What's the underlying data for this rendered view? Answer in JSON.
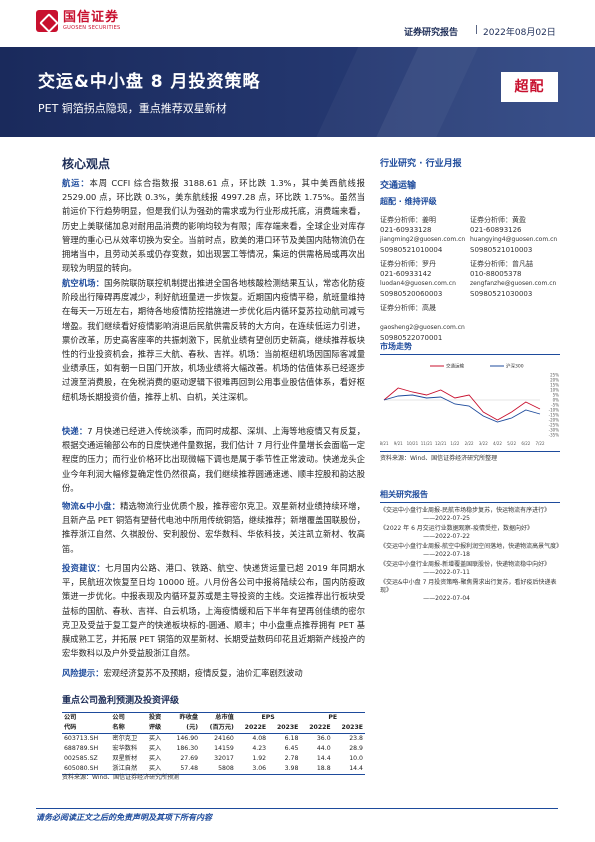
{
  "header": {
    "logo_cn": "国信证券",
    "logo_en": "GUOSEN SECURITIES",
    "report_type": "证券研究报告",
    "separator": "|",
    "date": "2022年08月02日"
  },
  "banner": {
    "title": "交运&中小盘 8 月投资策略",
    "subtitle": "PET 铜箔拐点隐现，重点推荐双星新材",
    "rating": "超配"
  },
  "core": {
    "title": "核心观点",
    "p1_kw": "航运：",
    "p1": "本周 CCFI 综合指数报 3188.61 点，环比跌 1.3%，其中美西航线报 2529.00 点，环比跌 0.3%，美东航线报 4997.28 点，环比跌 1.75%。虽然当前运价下行趋势明显，但是我们认为强劲的需求或为行业形成托底，消费端来看，历史上美联储加息对耐用品消费的影响均较为有限；库存端来看，全球企业对库存管理的重心已从效率切换为安全。当前时点，欧美的港口环节及美国内陆物流仍在拥堵当中，且劳动关系或仍存变数，如出现罢工等情况，集运的供需格局或再次出现较为明显的转向。",
    "p2_kw": "航空机场：",
    "p2": "国务院联防联控机制提出推进全国各地核酸检测结果互认，常态化防疫阶段出行障碍再度减少，利好航班量进一步恢复。近期国内疫情平稳，航班量维持在每天一万班左右，期待各地疫情防控措施进一步优化后内循环复苏拉动航司减亏增盈。我们继续看好疫情影响消退后民航供需反转的大方向，在连续低运力引进，票价改革，历史高客座率的共振刺激下，民航业绩有望创历史新高，继续推荐板块性的行业投资机会，推荐三大航、春秋、吉祥。机场：当前枢纽机场因国际客减量业绩承压，如有朝一日国门开放，机场业绩将大幅改善。机场的估值体系已经逐步过渡至消费股，在免税消费的驱动逻辑下很难再回到公用事业股估值体系，看好枢纽机场长期投资价值，推荐上机、白机，关注深机。",
    "p3_kw": "快递：",
    "p3": "7 月快递已经进入传统淡季，而同时成都、深圳、上海等地疫情又有反复，根据交通运输部公布的日度快递件量数据，我们估计 7 月行业件量增长会面临一定程度的压力；而行业价格环比出现微幅下调也是属于季节性正常波动。快递龙头企业今年利润大幅修复确定性仍然很高，我们继续推荐圆通速递、顺丰控股和韵达股份。",
    "p4_kw": "物流&中小盘：",
    "p4": "精选物流行业优质个股，推荐密尔克卫。双星新材业绩持续环增，且新产品 PET 铜箔有望替代电池中所用传统铜箔，继续推荐；新增覆盖国联股份，推荐浙江自然、久祺股份、安利股份、宏华数科、华依科技，关注凯立新材、牧高笛。",
    "p5_kw": "投资建议：",
    "p5": "七月国内公路、港口、铁路、航空、快递货运量已超 2019 年同期水平，民航班次恢复至日均 10000 班。八月份各公司中报将陆续公布，国内防疫政策进一步优化。中报表现及内循环复苏或是主导投资的主线。交运推荐出行板块受益标的国航、春秋、吉祥、白云机场，上海疫情缓和后下半年有望再创佳绩的密尔克卫及受益于复工复产的快递板块标的-圆通、顺丰；中小盘重点推荐拥有 PET 基膜成熟工艺，并拓展 PET 铜箔的双星新材、长期受益数码印花且近期新产线投产的宏华数科以及户外受益股浙江自然。",
    "p6_kw": "风险提示：",
    "p6": "宏观经济复苏不及预期，疫情反复，油价汇率剧烈波动"
  },
  "table": {
    "title": "重点公司盈利预测及投资评级",
    "headers_row1": [
      "公司",
      "公司",
      "投资",
      "昨收盘",
      "总市值",
      "EPS",
      "",
      "PE",
      ""
    ],
    "headers_row2": [
      "代码",
      "名称",
      "评级",
      "(元)",
      "(百万元)",
      "2022E",
      "2023E",
      "2022E",
      "2023E"
    ],
    "rows": [
      [
        "603713.SH",
        "密尔克卫",
        "买入",
        "146.90",
        "24160",
        "4.08",
        "6.18",
        "36.0",
        "23.8"
      ],
      [
        "688789.SH",
        "宏华数科",
        "买入",
        "186.30",
        "14159",
        "4.23",
        "6.45",
        "44.0",
        "28.9"
      ],
      [
        "002585.SZ",
        "双星新材",
        "买入",
        "27.69",
        "32017",
        "1.92",
        "2.78",
        "14.4",
        "10.0"
      ],
      [
        "605080.SH",
        "浙江自然",
        "买入",
        "57.48",
        "5808",
        "3.06",
        "3.98",
        "18.8",
        "14.4"
      ]
    ],
    "source": "资料来源：Wind、国信证券经济研究所预测"
  },
  "right": {
    "industry": "行业研究 · 行业月报",
    "sector": "交通运输",
    "rating": "超配 · 维持评级",
    "analysts": [
      {
        "role": "证券分析师：",
        "name": "姜明",
        "phone": "021-60933128",
        "email": "jiangming2@guosen.com.cn",
        "cert": "S0980521010004"
      },
      {
        "role": "证券分析师：",
        "name": "黄盈",
        "phone": "021-60893126",
        "email": "huangying4@guosen.com.cn",
        "cert": "S0980521010003"
      },
      {
        "role": "证券分析师：",
        "name": "罗丹",
        "phone": "021-60933142",
        "email": "luodan4@guosen.com.cn",
        "cert": "S0980520060003"
      },
      {
        "role": "证券分析师：",
        "name": "曾凡喆",
        "phone": "010-88005378",
        "email": "zengfanzhe@guosen.com.cn",
        "cert": "S0980521030003"
      },
      {
        "role": "证券分析师：",
        "name": "高晟",
        "phone": "",
        "email": "gaosheng2@guosen.com.cn",
        "cert": "S0980522070001"
      }
    ],
    "market_title": "市场走势",
    "chart_source": "资料来源：Wind、国信证券经济研究所整理",
    "related_title": "相关研究报告",
    "related": [
      {
        "title": "《交运中小盘行业周报-民航市场稳步复苏，快运物流有序进行》",
        "date": "——2022-07-25"
      },
      {
        "title": "《2022 年 6 月交运行业数据观察-疫情受控，数据向好》",
        "date": "——2022-07-22"
      },
      {
        "title": "《交运中小盘行业周报-航空中报利润空间落地，快递物流高景气度》",
        "date": "——2022-07-18"
      },
      {
        "title": "《交运中小盘行业周报-新增覆盖国联股份，快递物流稳中向好》",
        "date": "——2022-07-11"
      },
      {
        "title": "《交运&中小盘 7 月投资策略-聚焦需求出行复苏，看好疫后快递表现》",
        "date": "——2022-07-04"
      }
    ]
  },
  "chart_data": {
    "type": "line",
    "x": [
      "8/21",
      "9/21",
      "10/21",
      "11/21",
      "12/21",
      "1/22",
      "2/22",
      "3/22",
      "4/22",
      "5/22",
      "6/22",
      "7/22"
    ],
    "ylim": [
      -0.35,
      0.25
    ],
    "ytick_labels": [
      "25%",
      "20%",
      "15%",
      "10%",
      "5%",
      "0%",
      "-5%",
      "-10%",
      "-15%",
      "-20%",
      "-25%",
      "-30%",
      "-35%"
    ],
    "series": [
      {
        "name": "交通运输",
        "color": "#c8102e",
        "values": [
          0.0,
          0.12,
          0.08,
          0.05,
          0.1,
          0.02,
          0.05,
          -0.12,
          -0.2,
          -0.12,
          -0.02,
          -0.09
        ]
      },
      {
        "name": "沪深300",
        "color": "#1e4b9c",
        "values": [
          0.0,
          0.04,
          0.05,
          0.02,
          0.03,
          -0.04,
          -0.06,
          -0.16,
          -0.22,
          -0.18,
          -0.1,
          -0.14
        ]
      }
    ]
  },
  "footer": {
    "text": "请务必阅读正文之后的免责声明及其项下所有内容"
  }
}
